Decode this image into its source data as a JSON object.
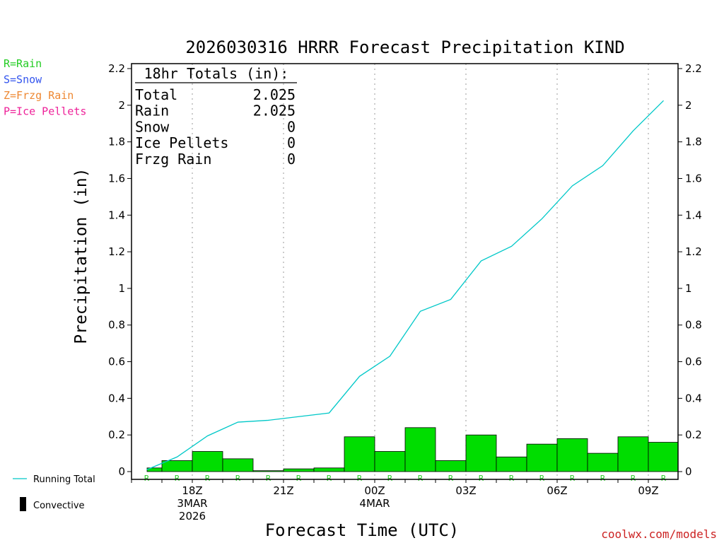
{
  "title": "2026030316 HRRR Forecast Precipitation KIND",
  "ylabel": "Precipitation (in)",
  "xlabel": "Forecast Time (UTC)",
  "credit": "coolwx.com/models",
  "type_key": [
    {
      "text": "R=Rain",
      "color": "#22cc22"
    },
    {
      "text": "S=Snow",
      "color": "#3355ee"
    },
    {
      "text": "Z=Frzg Rain",
      "color": "#ee8833"
    },
    {
      "text": "P=Ice Pellets",
      "color": "#ee2299"
    }
  ],
  "totals": {
    "header": "18hr Totals (in):",
    "rows": [
      {
        "label": "Total",
        "value": "2.025"
      },
      {
        "label": "Rain",
        "value": "2.025"
      },
      {
        "label": "Snow",
        "value": "0"
      },
      {
        "label": "Ice Pellets",
        "value": "0"
      },
      {
        "label": "Frzg Rain",
        "value": "0"
      }
    ]
  },
  "legend": {
    "running_total": "Running Total",
    "convective": "Convective"
  },
  "colors": {
    "bar": "#00dd00",
    "line": "#00c8c8",
    "rain_marker": "#22cc22"
  },
  "chart_data": {
    "type": "bar",
    "hours": [
      17,
      18,
      19,
      20,
      21,
      22,
      23,
      24,
      25,
      26,
      27,
      28,
      29,
      30,
      31,
      32,
      33,
      34
    ],
    "hourly_precip": [
      0.02,
      0.06,
      0.11,
      0.07,
      0.005,
      0.015,
      0.02,
      0.19,
      0.11,
      0.24,
      0.06,
      0.2,
      0.08,
      0.15,
      0.18,
      0.1,
      0.19,
      0.16
    ],
    "running_total": [
      0.01,
      0.08,
      0.195,
      0.27,
      0.28,
      0.3,
      0.32,
      0.52,
      0.63,
      0.875,
      0.94,
      1.15,
      1.23,
      1.38,
      1.56,
      1.67,
      1.86,
      2.025
    ],
    "precip_type": "R",
    "ylim": [
      0,
      2.2
    ],
    "yticks": [
      "0",
      "0.2",
      "0.4",
      "0.6",
      "0.8",
      "1",
      "1.2",
      "1.4",
      "1.6",
      "1.8",
      "2",
      "2.2"
    ],
    "xticks": [
      {
        "hour": 18,
        "lines": [
          "18Z",
          "3MAR",
          "2026"
        ]
      },
      {
        "hour": 21,
        "lines": [
          "21Z"
        ]
      },
      {
        "hour": 24,
        "lines": [
          "00Z",
          "4MAR"
        ]
      },
      {
        "hour": 27,
        "lines": [
          "03Z"
        ]
      },
      {
        "hour": 30,
        "lines": [
          "06Z"
        ]
      },
      {
        "hour": 33,
        "lines": [
          "09Z"
        ]
      }
    ],
    "grid": "vertical dotted at 3-hourly ticks"
  }
}
